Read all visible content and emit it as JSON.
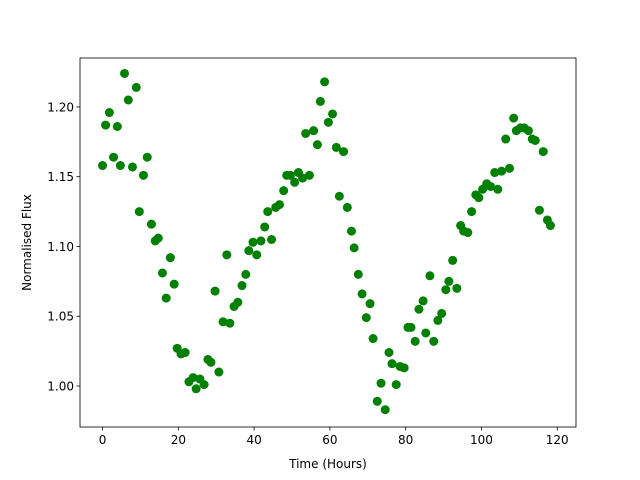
{
  "chart_data": {
    "type": "scatter",
    "xlabel": "Time (Hours)",
    "ylabel": "Normalised Flux",
    "color": "#008000",
    "x": [
      0,
      0.8,
      1.8,
      2.9,
      3.9,
      4.7,
      5.8,
      6.8,
      7.9,
      8.9,
      9.7,
      10.8,
      11.8,
      12.9,
      13.9,
      14.7,
      15.8,
      16.8,
      17.9,
      18.9,
      19.7,
      20.7,
      21.8,
      22.8,
      23.9,
      24.7,
      25.7,
      26.8,
      27.8,
      28.6,
      29.7,
      30.7,
      31.8,
      32.8,
      33.6,
      34.7,
      35.7,
      36.8,
      37.8,
      38.6,
      39.7,
      40.7,
      41.8,
      42.8,
      43.6,
      44.6,
      45.7,
      46.7,
      47.8,
      48.6,
      49.6,
      50.7,
      51.7,
      52.8,
      53.6,
      54.6,
      55.7,
      56.7,
      57.5,
      58.6,
      59.6,
      60.7,
      61.7,
      62.5,
      63.6,
      64.6,
      65.7,
      66.4,
      67.5,
      68.5,
      69.6,
      70.6,
      71.4,
      72.5,
      73.5,
      74.6,
      75.6,
      76.4,
      77.5,
      78.5,
      79.6,
      80.6,
      81.4,
      82.5,
      83.5,
      84.6,
      85.3,
      86.4,
      87.4,
      88.5,
      89.5,
      90.6,
      91.4,
      92.4,
      93.5,
      94.5,
      95.3,
      96.4,
      97.4,
      98.5,
      99.3,
      100.3,
      101.4,
      102.4,
      103.5,
      104.3,
      105.3,
      106.4,
      107.4,
      108.5,
      109.2,
      110.3,
      111.3,
      112.4,
      113.4,
      114.2,
      115.3,
      116.3,
      117.4,
      118.2
    ],
    "values": [
      1.158,
      1.187,
      1.196,
      1.164,
      1.186,
      1.158,
      1.224,
      1.205,
      1.157,
      1.214,
      1.125,
      1.151,
      1.164,
      1.116,
      1.104,
      1.106,
      1.081,
      1.063,
      1.092,
      1.073,
      1.027,
      1.023,
      1.024,
      1.003,
      1.006,
      0.998,
      1.005,
      1.001,
      1.019,
      1.017,
      1.068,
      1.01,
      1.046,
      1.094,
      1.045,
      1.057,
      1.06,
      1.072,
      1.08,
      1.097,
      1.103,
      1.094,
      1.104,
      1.114,
      1.125,
      1.105,
      1.128,
      1.13,
      1.14,
      1.151,
      1.151,
      1.146,
      1.153,
      1.149,
      1.181,
      1.151,
      1.183,
      1.173,
      1.204,
      1.218,
      1.189,
      1.195,
      1.171,
      1.136,
      1.168,
      1.128,
      1.111,
      1.099,
      1.08,
      1.066,
      1.049,
      1.059,
      1.034,
      0.989,
      1.002,
      0.983,
      1.024,
      1.016,
      1.001,
      1.014,
      1.013,
      1.042,
      1.042,
      1.032,
      1.055,
      1.061,
      1.038,
      1.079,
      1.032,
      1.047,
      1.052,
      1.069,
      1.075,
      1.09,
      1.07,
      1.115,
      1.111,
      1.11,
      1.125,
      1.137,
      1.135,
      1.141,
      1.145,
      1.143,
      1.153,
      1.141,
      1.154,
      1.177,
      1.156,
      1.192,
      1.183,
      1.185,
      1.185,
      1.183,
      1.177,
      1.176,
      1.126,
      1.168,
      1.119,
      1.115
    ],
    "xlim": [
      -5.95,
      124.95
    ],
    "xticks": [
      0,
      20,
      40,
      60,
      80,
      100,
      120
    ],
    "ylim": [
      0.9706,
      1.2351
    ],
    "yticks": [
      {
        "value": 1,
        "label": "1.00"
      },
      1.05,
      {
        "value": 1.1,
        "label": "1.10"
      },
      1.15,
      {
        "value": 1.2,
        "label": "1.20"
      }
    ]
  }
}
